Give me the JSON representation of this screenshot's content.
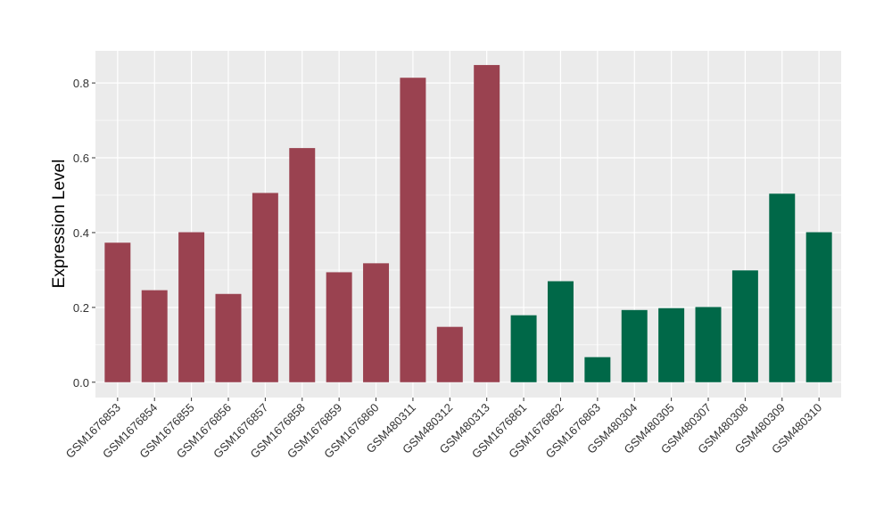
{
  "chart_data": {
    "type": "bar",
    "title": "",
    "xlabel": "",
    "ylabel": "Expression Level",
    "ylim": [
      -0.041,
      0.886
    ],
    "yticks": [
      "0.0",
      "0.2",
      "0.4",
      "0.6",
      "0.8"
    ],
    "grid": true,
    "categories": [
      "GSM1676853",
      "GSM1676854",
      "GSM1676855",
      "GSM1676856",
      "GSM1676857",
      "GSM1676858",
      "GSM1676859",
      "GSM1676860",
      "GSM480311",
      "GSM480312",
      "GSM480313",
      "GSM1676861",
      "GSM1676862",
      "GSM1676863",
      "GSM480304",
      "GSM480305",
      "GSM480307",
      "GSM480308",
      "GSM480309",
      "GSM480310"
    ],
    "values": [
      0.373,
      0.246,
      0.401,
      0.236,
      0.506,
      0.626,
      0.294,
      0.318,
      0.814,
      0.148,
      0.848,
      0.179,
      0.27,
      0.067,
      0.193,
      0.198,
      0.201,
      0.299,
      0.504,
      0.401
    ],
    "groups": [
      "a",
      "a",
      "a",
      "a",
      "a",
      "a",
      "a",
      "a",
      "a",
      "a",
      "a",
      "b",
      "b",
      "b",
      "b",
      "b",
      "b",
      "b",
      "b",
      "b"
    ],
    "colors": {
      "a": "#9A4250",
      "b": "#006848"
    },
    "panel_background": "#EBEBEB"
  }
}
